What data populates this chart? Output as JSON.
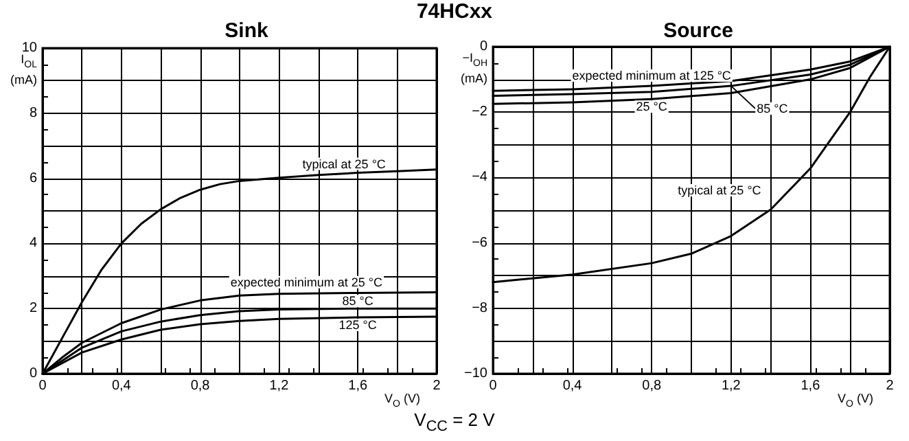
{
  "chart_data": [
    {
      "type": "line",
      "title": "Sink",
      "xlabel": "V$_{O}$ (V)",
      "ylabel": "I$_{OL}$ (mA)",
      "annotations": [
        "74HCxx",
        "V$_{CC}$ = 2 V"
      ],
      "xlim": [
        0,
        2
      ],
      "xticks": [
        {
          "value": 0,
          "label": "0"
        },
        {
          "value": 0.2,
          "label": null
        },
        {
          "value": 0.4,
          "label": "0,4"
        },
        {
          "value": 0.6,
          "label": null
        },
        {
          "value": 0.8,
          "label": "0,8"
        },
        {
          "value": 1.0,
          "label": null
        },
        {
          "value": 1.2,
          "label": "1,2"
        },
        {
          "value": 1.4,
          "label": null
        },
        {
          "value": 1.6,
          "label": "1,6"
        },
        {
          "value": 1.8,
          "label": null
        },
        {
          "value": 2,
          "label": "2"
        }
      ],
      "ylim": [
        0,
        10
      ],
      "yticks": [
        {
          "value": 0,
          "label": "0"
        },
        {
          "value": 1,
          "label": null
        },
        {
          "value": 2,
          "label": "2"
        },
        {
          "value": 3,
          "label": null
        },
        {
          "value": 4,
          "label": "4"
        },
        {
          "value": 5,
          "label": null
        },
        {
          "value": 6,
          "label": "6"
        },
        {
          "value": 7,
          "label": null
        },
        {
          "value": 8,
          "label": "8"
        },
        {
          "value": 9,
          "label": null
        },
        {
          "value": 10,
          "label": "10"
        }
      ],
      "grid": true,
      "legend": false,
      "marker": "none",
      "line_style": "solid",
      "series": [
        {
          "name": "typical at 25 °C",
          "color": "#000000",
          "x": [
            0,
            0.1,
            0.2,
            0.3,
            0.4,
            0.5,
            0.6,
            0.7,
            0.8,
            0.9,
            1.0,
            1.2,
            1.4,
            1.6,
            1.8,
            2.0
          ],
          "values": [
            0,
            1.1,
            2.2,
            3.2,
            4.0,
            4.6,
            5.05,
            5.4,
            5.65,
            5.82,
            5.92,
            6.02,
            6.1,
            6.17,
            6.22,
            6.27
          ]
        },
        {
          "name": "expected minimum at 25 °C",
          "color": "#000000",
          "x": [
            0,
            0.1,
            0.2,
            0.4,
            0.6,
            0.8,
            1.0,
            1.2,
            1.6,
            2.0
          ],
          "values": [
            0,
            0.5,
            0.95,
            1.55,
            1.97,
            2.25,
            2.4,
            2.45,
            2.48,
            2.5
          ]
        },
        {
          "name": "85 °C",
          "color": "#000000",
          "x": [
            0,
            0.2,
            0.4,
            0.6,
            0.8,
            1.0,
            1.2,
            1.6,
            2.0
          ],
          "values": [
            0,
            0.8,
            1.3,
            1.6,
            1.8,
            1.92,
            1.97,
            2.0,
            2.0
          ]
        },
        {
          "name": "125 °C",
          "color": "#000000",
          "x": [
            0,
            0.2,
            0.4,
            0.6,
            0.8,
            1.0,
            1.2,
            1.6,
            2.0
          ],
          "values": [
            0,
            0.65,
            1.05,
            1.35,
            1.52,
            1.62,
            1.68,
            1.73,
            1.75
          ]
        }
      ]
    },
    {
      "type": "line",
      "title": "Source",
      "xlabel": "V$_{O}$ (V)",
      "ylabel": "−I$_{OH}$ (mA)",
      "xlim": [
        0,
        2
      ],
      "xticks": [
        {
          "value": 0,
          "label": "0"
        },
        {
          "value": 0.2,
          "label": null
        },
        {
          "value": 0.4,
          "label": "0,4"
        },
        {
          "value": 0.6,
          "label": null
        },
        {
          "value": 0.8,
          "label": "0,8"
        },
        {
          "value": 1.0,
          "label": null
        },
        {
          "value": 1.2,
          "label": "1,2"
        },
        {
          "value": 1.4,
          "label": null
        },
        {
          "value": 1.6,
          "label": "1,6"
        },
        {
          "value": 1.8,
          "label": null
        },
        {
          "value": 2,
          "label": "2"
        }
      ],
      "ylim": [
        -10,
        0
      ],
      "yticks": [
        {
          "value": -10,
          "label": "−10"
        },
        {
          "value": -9,
          "label": null
        },
        {
          "value": -8,
          "label": "−8"
        },
        {
          "value": -7,
          "label": null
        },
        {
          "value": -6,
          "label": "−6"
        },
        {
          "value": -5,
          "label": null
        },
        {
          "value": -4,
          "label": "−4"
        },
        {
          "value": -3,
          "label": null
        },
        {
          "value": -2,
          "label": "−2"
        },
        {
          "value": -1,
          "label": null
        },
        0
      ],
      "grid": true,
      "legend": false,
      "marker": "none",
      "line_style": "solid",
      "series": [
        {
          "name": "expected minimum at 125 °C",
          "color": "#000000",
          "x": [
            0,
            0.4,
            0.8,
            1.2,
            1.6,
            1.8,
            2.0
          ],
          "values": [
            -1.35,
            -1.3,
            -1.2,
            -1.05,
            -0.7,
            -0.45,
            0
          ]
        },
        {
          "name": "85 °C",
          "color": "#000000",
          "x": [
            0,
            0.4,
            0.8,
            1.2,
            1.6,
            1.8,
            2.0
          ],
          "values": [
            -1.5,
            -1.45,
            -1.38,
            -1.2,
            -0.85,
            -0.55,
            0
          ]
        },
        {
          "name": "25 °C",
          "color": "#000000",
          "x": [
            0,
            0.4,
            0.8,
            1.2,
            1.6,
            1.8,
            2.0
          ],
          "values": [
            -1.75,
            -1.7,
            -1.6,
            -1.42,
            -1.0,
            -0.65,
            0
          ]
        },
        {
          "name": "typical at 25 °C",
          "color": "#000000",
          "x": [
            0,
            0.4,
            0.8,
            1.0,
            1.2,
            1.4,
            1.6,
            1.8,
            1.9,
            2.0
          ],
          "values": [
            -7.2,
            -6.97,
            -6.62,
            -6.33,
            -5.79,
            -4.98,
            -3.72,
            -2.0,
            -0.93,
            0
          ]
        }
      ]
    }
  ]
}
